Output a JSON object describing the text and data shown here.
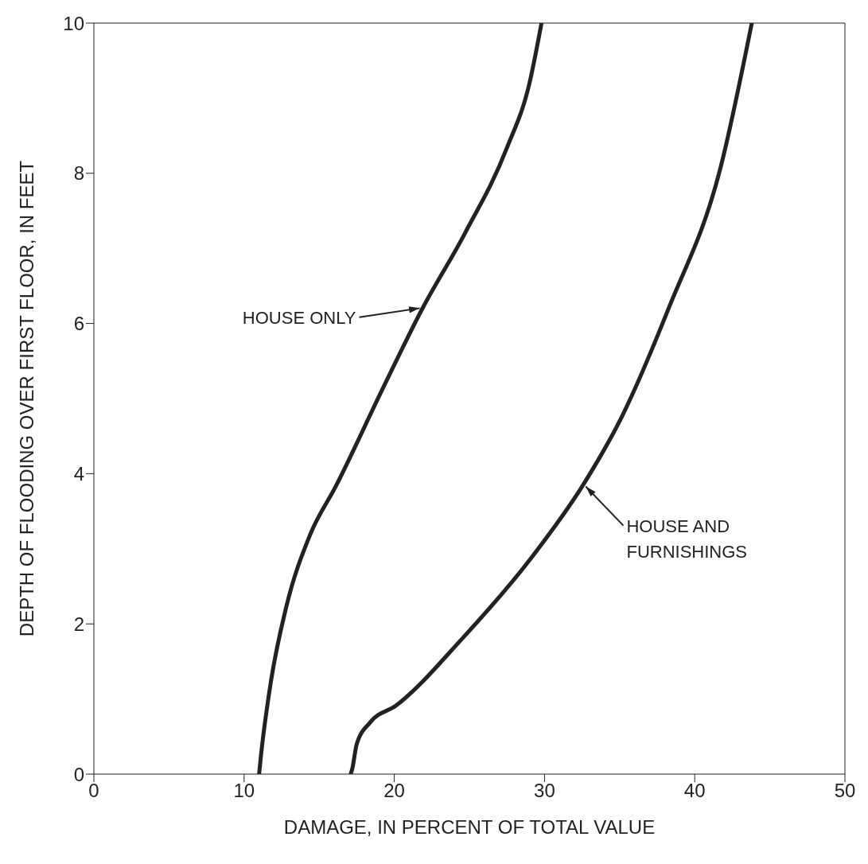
{
  "chart_data": {
    "type": "line",
    "xlabel": "DAMAGE, IN PERCENT OF TOTAL VALUE",
    "ylabel": "DEPTH OF FLOODING OVER FIRST FLOOR, IN FEET",
    "xlim": [
      0,
      50
    ],
    "xticks": [
      0,
      10,
      20,
      30,
      40,
      50
    ],
    "ylim": [
      0,
      10
    ],
    "yticks": [
      0,
      2,
      4,
      6,
      8,
      10
    ],
    "marker": "none",
    "line_style": "solid",
    "series": [
      {
        "color": "#222222",
        "x": [
          11.0,
          11.1,
          11.8,
          12.8,
          14.4,
          16.1,
          19.2,
          21.9,
          24.7,
          27.5,
          29.0,
          29.8
        ],
        "values": [
          0,
          0.2,
          1.25,
          2.22,
          3.19,
          3.83,
          5.12,
          6.21,
          7.2,
          8.34,
          9.2,
          10
        ]
      },
      {
        "color": "#222222",
        "x": [
          17.1,
          17.2,
          17.5,
          18.4,
          20.1,
          24.5,
          29.2,
          32.6,
          35.1,
          38.3,
          41.7,
          43.8
        ],
        "values": [
          0,
          0.07,
          0.4,
          0.69,
          0.91,
          1.8,
          2.9,
          3.86,
          4.74,
          6.22,
          8.06,
          10
        ]
      }
    ],
    "annotations": [
      {
        "text": "HOUSE ONLY",
        "x": 21.9,
        "y": 6.21
      },
      {
        "text": "HOUSE AND FURNISHINGS",
        "x": 32.6,
        "y": 3.86
      }
    ]
  }
}
